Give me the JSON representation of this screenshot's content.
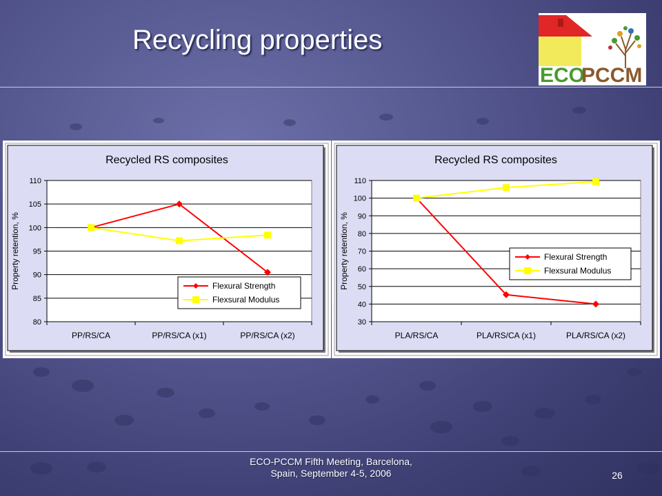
{
  "slide": {
    "title": "Recycling properties",
    "footer_line1": "ECO-PCCM Fifth Meeting, Barcelona,",
    "footer_line2": "Spain, September 4-5, 2006",
    "page_number": "26"
  },
  "logo": {
    "text_eco": "ECO",
    "text_pccm": "PCCM",
    "colors": {
      "roof": "#e02626",
      "wall": "#f2ea5a",
      "eco": "#4a9a2e",
      "pccm": "#8a5a2b"
    }
  },
  "colors": {
    "flexural_strength": "#ff0000",
    "flexural_modulus": "#ffff00",
    "plot_bg": "#ffffff",
    "chart_bg": "#dcdcf4"
  },
  "chart_data": [
    {
      "type": "line",
      "title": "Recycled RS composites",
      "ylabel": "Property retention, %",
      "xlabel": "",
      "categories": [
        "PP/RS/CA",
        "PP/RS/CA (x1)",
        "PP/RS/CA (x2)"
      ],
      "ylim": [
        80,
        110
      ],
      "yticks": [
        80,
        85,
        90,
        95,
        100,
        105,
        110
      ],
      "grid": "horizontal",
      "legend": "bottom-right",
      "series": [
        {
          "name": "Flexural Strength",
          "values": [
            100,
            105,
            90.5
          ],
          "marker": "diamond",
          "color": "#ff0000"
        },
        {
          "name": "Flexsural Modulus",
          "values": [
            100,
            97.2,
            98.4
          ],
          "marker": "square",
          "color": "#ffff00"
        }
      ]
    },
    {
      "type": "line",
      "title": "Recycled RS composites",
      "ylabel": "Property retention, %",
      "xlabel": "",
      "categories": [
        "PLA/RS/CA",
        "PLA/RS/CA (x1)",
        "PLA/RS/CA (x2)"
      ],
      "ylim": [
        30,
        110
      ],
      "yticks": [
        30,
        40,
        50,
        60,
        70,
        80,
        90,
        100,
        110
      ],
      "grid": "horizontal",
      "legend": "right",
      "series": [
        {
          "name": "Flexural Strength",
          "values": [
            100,
            45.3,
            40
          ],
          "marker": "diamond",
          "color": "#ff0000"
        },
        {
          "name": "Flexsural Modulus",
          "values": [
            100,
            106,
            109.3
          ],
          "marker": "square",
          "color": "#ffff00"
        }
      ]
    }
  ]
}
